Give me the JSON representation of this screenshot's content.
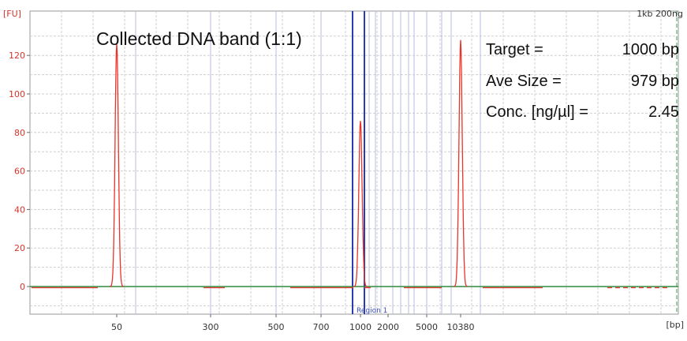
{
  "chart_data": {
    "type": "line",
    "title": "Collected DNA band (1:1)",
    "sample_label": "1kb 200ng",
    "y_unit": "[FU]",
    "x_unit": "[bp]",
    "ylim": [
      -10,
      140
    ],
    "yticks": [
      0,
      20,
      40,
      60,
      80,
      100,
      120
    ],
    "xticks": [
      "50",
      "300",
      "500",
      "700",
      "1000",
      "2000",
      "5000",
      "10380"
    ],
    "region_label": "Region 1",
    "grid": true,
    "colors": {
      "trace": "#e8342a",
      "baseline": "#2e8b3e",
      "marker": "#1f3fa8",
      "region": "#2a3cb0",
      "grid": "#cfcfcf"
    },
    "series": [
      {
        "peaks": [
          {
            "x": "50",
            "y": 126
          },
          {
            "x": "1000",
            "y": 86
          },
          {
            "x": "10380",
            "y": 128
          }
        ]
      }
    ]
  },
  "stats": {
    "target_label": "Target =",
    "target_value": "1000 bp",
    "avesize_label": "Ave Size =",
    "avesize_value": "979 bp",
    "conc_label": "Conc. [ng/µl] =",
    "conc_value": "2.45"
  }
}
